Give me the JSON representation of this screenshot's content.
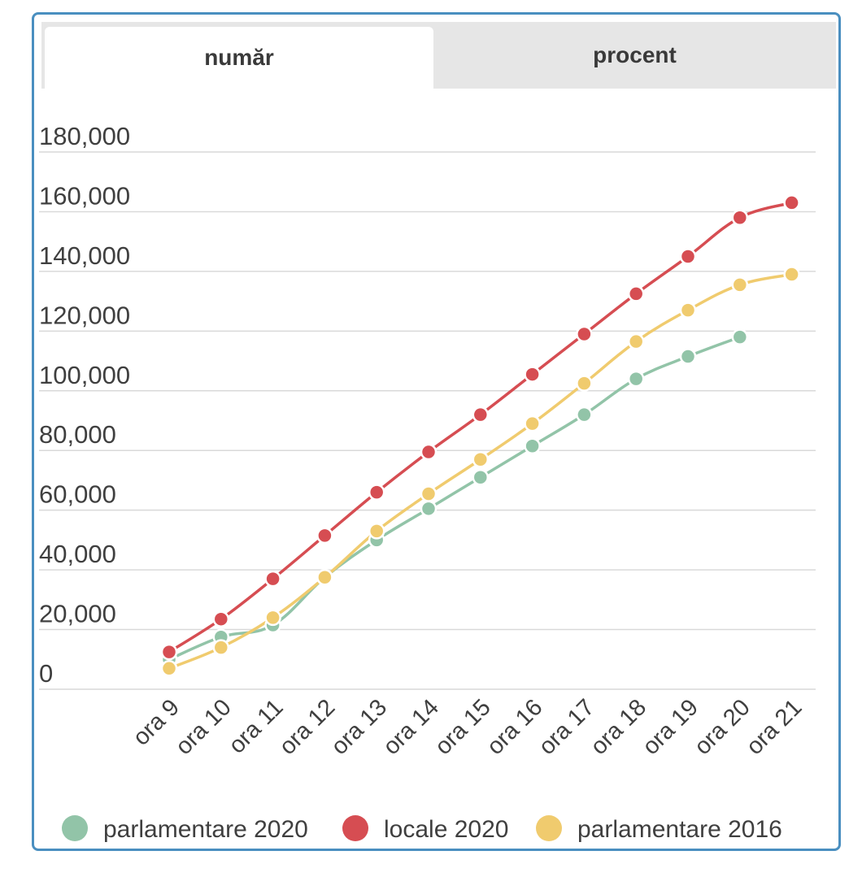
{
  "tabs": [
    {
      "label": "număr",
      "active": true
    },
    {
      "label": "procent",
      "active": false
    }
  ],
  "colors": {
    "frame_border": "#4a8fc0",
    "grid": "#d9d9d9"
  },
  "chart_data": {
    "type": "line",
    "title": "",
    "xlabel": "",
    "ylabel": "",
    "ylim": [
      0,
      180000
    ],
    "yticks": [
      0,
      20000,
      40000,
      60000,
      80000,
      100000,
      120000,
      140000,
      160000,
      180000
    ],
    "ytick_labels": [
      "0",
      "20,000",
      "40,000",
      "60,000",
      "80,000",
      "100,000",
      "120,000",
      "140,000",
      "160,000",
      "180,000"
    ],
    "grid": true,
    "legend_position": "bottom",
    "categories": [
      "ora 9",
      "ora 10",
      "ora 11",
      "ora 12",
      "ora 13",
      "ora 14",
      "ora 15",
      "ora 16",
      "ora 17",
      "ora 18",
      "ora 19",
      "ora 20",
      "ora 21"
    ],
    "series": [
      {
        "name": "parlamentare 2020",
        "color": "#92c4a8",
        "values": [
          10000,
          17500,
          21500,
          37500,
          50000,
          60500,
          71000,
          81500,
          92000,
          104000,
          111500,
          118000,
          null
        ]
      },
      {
        "name": "locale 2020",
        "color": "#d64d52",
        "values": [
          12500,
          23500,
          37000,
          51500,
          66000,
          79500,
          92000,
          105500,
          119000,
          132500,
          145000,
          158000,
          163000
        ]
      },
      {
        "name": "parlamentare 2016",
        "color": "#f0cb6e",
        "values": [
          7000,
          14000,
          24000,
          37500,
          53000,
          65500,
          77000,
          89000,
          102500,
          116500,
          127000,
          135500,
          139000
        ]
      }
    ]
  }
}
